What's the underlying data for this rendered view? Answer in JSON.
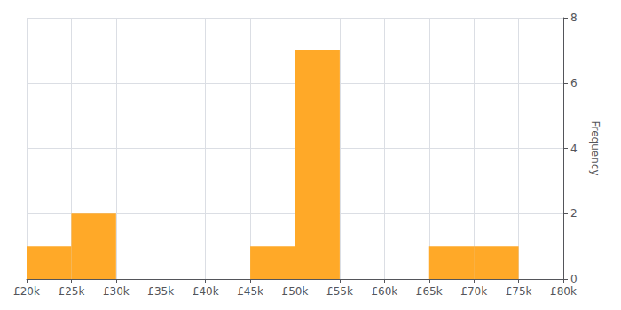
{
  "chart_data": {
    "type": "histogram",
    "ylabel": "Frequency",
    "bins": [
      20000,
      25000,
      30000,
      35000,
      40000,
      45000,
      50000,
      55000,
      60000,
      65000,
      70000,
      75000,
      80000
    ],
    "values": [
      1,
      2,
      0,
      0,
      0,
      1,
      7,
      0,
      0,
      1,
      1,
      0
    ],
    "color": "#FFA928",
    "xlim": [
      20000,
      80000
    ],
    "xticks": [
      {
        "value": 20000,
        "label": "£20k"
      },
      {
        "value": 25000,
        "label": "£25k"
      },
      {
        "value": 30000,
        "label": "£30k"
      },
      {
        "value": 35000,
        "label": "£35k"
      },
      {
        "value": 40000,
        "label": "£40k"
      },
      {
        "value": 45000,
        "label": "£45k"
      },
      {
        "value": 50000,
        "label": "£50k"
      },
      {
        "value": 55000,
        "label": "£55k"
      },
      {
        "value": 60000,
        "label": "£60k"
      },
      {
        "value": 65000,
        "label": "£65k"
      },
      {
        "value": 70000,
        "label": "£70k"
      },
      {
        "value": 75000,
        "label": "£75k"
      },
      {
        "value": 80000,
        "label": "£80k"
      }
    ],
    "ylim": [
      0,
      8
    ],
    "yticks": [
      0,
      2,
      4,
      6,
      8
    ],
    "grid": true
  }
}
